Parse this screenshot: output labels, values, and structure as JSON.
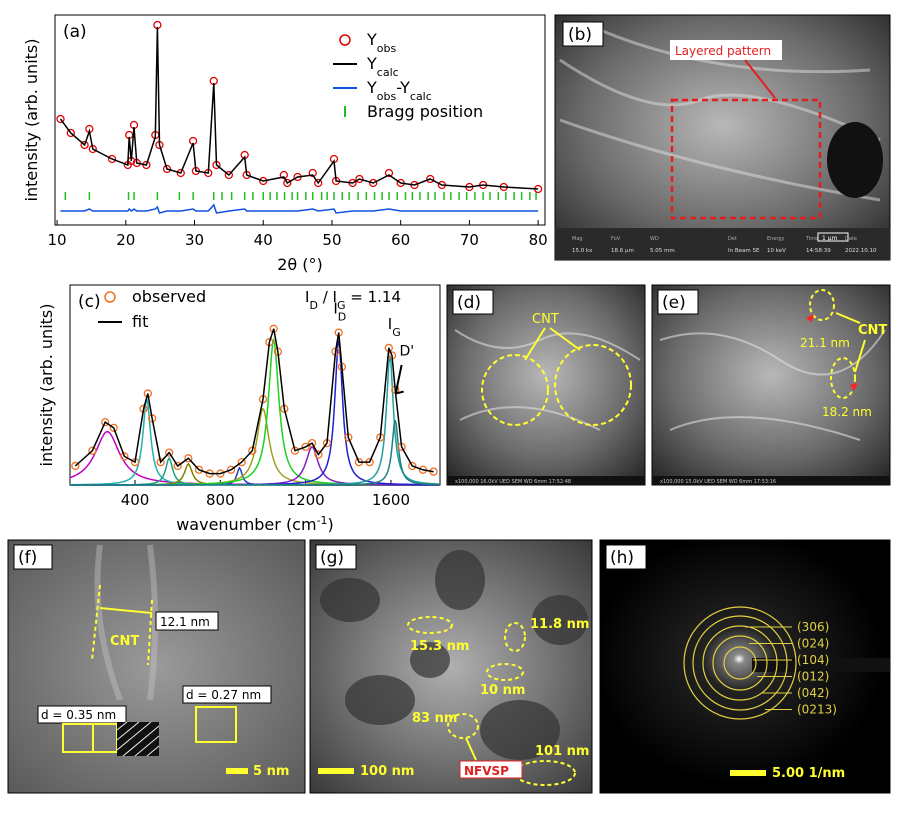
{
  "chart_data": [
    {
      "type": "line",
      "label": "(a)",
      "y_label": "intensity (arb. units)",
      "x_label": "2θ (°)",
      "xlim": [
        9.7,
        81
      ],
      "ylim": [
        0,
        105
      ],
      "xticks": [
        10,
        20,
        30,
        40,
        50,
        60,
        70,
        80
      ],
      "x": [
        10.5,
        12,
        14,
        14.7,
        15.2,
        18,
        20.3,
        20.5,
        20.8,
        21.2,
        21.6,
        23,
        24.3,
        24.6,
        24.9,
        26,
        28,
        29.8,
        30.2,
        32,
        32.8,
        33.2,
        35,
        37.3,
        37.6,
        40,
        43,
        43.5,
        45,
        47.2,
        48,
        50.3,
        50.6,
        53,
        54,
        56,
        58.3,
        60,
        62,
        64.3,
        66,
        70,
        72,
        75,
        80
      ],
      "series": [
        {
          "name": "Y",
          "name_sub": "obs",
          "color": "#e00000",
          "marker": "circle",
          "values": [
            53,
            46,
            40,
            48,
            38,
            33,
            30,
            45,
            32,
            50,
            31,
            30,
            45,
            100,
            40,
            28,
            26,
            42,
            27,
            26,
            72,
            30,
            25,
            35,
            25,
            22,
            25,
            21,
            24,
            26,
            21,
            33,
            22,
            21,
            23,
            21,
            26,
            21,
            20,
            23,
            20,
            19,
            20,
            19,
            18
          ]
        },
        {
          "name": "Y",
          "name_sub": "calc",
          "color": "#000000",
          "marker": "line",
          "values": [
            53,
            46,
            40,
            47,
            38,
            33,
            30,
            44,
            32,
            49,
            31,
            30,
            44,
            99,
            40,
            28,
            26,
            41,
            27,
            26,
            71,
            30,
            25,
            34,
            25,
            22,
            24,
            21,
            24,
            25,
            21,
            32,
            22,
            21,
            23,
            21,
            25,
            21,
            20,
            23,
            20,
            19,
            20,
            19,
            18
          ]
        },
        {
          "name": "Y",
          "name_sub": "obs",
          "name_mid": "-Y",
          "name_sub2": "calc",
          "color": "#1050e0",
          "marker": "line",
          "values": [
            7,
            7,
            7,
            8,
            7,
            7,
            7,
            8,
            7,
            8,
            7,
            7,
            8,
            9,
            6,
            7,
            7,
            8,
            7,
            7,
            10,
            6,
            7,
            8,
            7,
            7,
            7,
            7,
            7,
            8,
            7,
            8,
            6,
            7,
            7,
            7,
            8,
            7,
            7,
            7,
            7,
            7,
            7,
            7,
            7
          ]
        }
      ],
      "bragg": {
        "name": "Bragg position",
        "color": "#20c020",
        "x": [
          11.2,
          14.7,
          20.4,
          21.2,
          24.6,
          27.8,
          29.8,
          32.8,
          34,
          35.4,
          37.3,
          38.5,
          40,
          41,
          42,
          43.1,
          44.2,
          45,
          46.2,
          47.2,
          48.5,
          49.3,
          50.3,
          51.5,
          52.5,
          53.8,
          55,
          56.2,
          57.3,
          58.3,
          59.5,
          60.7,
          61.7,
          62.8,
          64,
          65,
          66.3,
          67.3,
          68.5,
          69.6,
          70.8,
          72,
          73,
          74.2,
          75.3,
          76.5,
          77.6,
          78.8,
          79.7
        ]
      }
    },
    {
      "type": "raman",
      "label": "(c)",
      "y_label": "intensity (arb. units)",
      "x_label": "wavenumber (cm",
      "x_label_sup": "-1",
      "x_label_end": ")",
      "xlim": [
        95,
        1830
      ],
      "ylim": [
        0,
        105
      ],
      "xticks": [
        400,
        800,
        1200,
        1600
      ],
      "x": [
        120,
        200,
        260,
        300,
        350,
        400,
        440,
        460,
        480,
        520,
        560,
        600,
        650,
        700,
        750,
        800,
        850,
        900,
        950,
        1000,
        1030,
        1050,
        1070,
        1100,
        1150,
        1200,
        1230,
        1260,
        1300,
        1340,
        1355,
        1370,
        1400,
        1450,
        1500,
        1550,
        1590,
        1605,
        1620,
        1650,
        1700,
        1750,
        1800
      ],
      "series": [
        {
          "name": "observed",
          "color": "#f07020",
          "marker": "circle",
          "values": [
            10,
            18,
            33,
            30,
            15,
            12,
            40,
            48,
            35,
            12,
            17,
            10,
            14,
            8,
            6,
            6,
            8,
            12,
            18,
            45,
            75,
            82,
            70,
            40,
            18,
            20,
            22,
            16,
            22,
            70,
            80,
            62,
            25,
            12,
            12,
            25,
            72,
            68,
            50,
            20,
            10,
            8,
            7
          ]
        },
        {
          "name": "fit",
          "color": "#000000",
          "marker": "line",
          "values": [
            10,
            18,
            33,
            30,
            15,
            12,
            40,
            48,
            35,
            12,
            17,
            10,
            14,
            8,
            6,
            6,
            8,
            12,
            18,
            45,
            75,
            82,
            70,
            40,
            18,
            20,
            22,
            16,
            22,
            70,
            80,
            62,
            25,
            12,
            12,
            25,
            72,
            68,
            50,
            20,
            10,
            8,
            7
          ]
        }
      ],
      "components": [
        {
          "color": "#c000c0",
          "center": 270,
          "height": 28,
          "width": 70
        },
        {
          "color": "#20b0b0",
          "center": 455,
          "height": 45,
          "width": 22
        },
        {
          "color": "#20a080",
          "center": 560,
          "height": 14,
          "width": 20
        },
        {
          "color": "#808000",
          "center": 650,
          "height": 11,
          "width": 22
        },
        {
          "color": "#2040c0",
          "center": 890,
          "height": 9,
          "width": 15
        },
        {
          "color": "#a0a020",
          "center": 1000,
          "height": 40,
          "width": 35
        },
        {
          "color": "#20d020",
          "center": 1050,
          "height": 76,
          "width": 30
        },
        {
          "color": "#8020c0",
          "center": 1230,
          "height": 20,
          "width": 35
        },
        {
          "color": "#2020d0",
          "center": 1355,
          "height": 76,
          "width": 22
        },
        {
          "color": "#20a0a0",
          "center": 1595,
          "height": 68,
          "width": 20
        },
        {
          "color": "#208080",
          "center": 1620,
          "height": 34,
          "width": 18
        }
      ],
      "ratio": {
        "a": "I",
        "a_sub": "D",
        "sep": " / ",
        "b": "I",
        "b_sub": "G",
        "eq": " = 1.14"
      },
      "peak_D": {
        "main": "I",
        "sub": "D"
      },
      "peak_G": {
        "main": "I",
        "sub": "G"
      },
      "peak_D2": "D'"
    }
  ],
  "panels": {
    "b": {
      "label": "(b)",
      "note": "Layered pattern",
      "info_keys": [
        "Mag",
        "FoV",
        "WD",
        "",
        "Det",
        "Energy",
        "Time",
        "Date"
      ],
      "info_values": [
        "15.0 kx",
        "18.6 µm",
        "5.05 mm",
        "",
        "In Beam SE",
        "10 keV",
        "14:58:39",
        "2022.10.10"
      ],
      "scale": "1 µm"
    },
    "d": {
      "label": "(d)",
      "note": "CNT",
      "footer": "x100,000   16.0kV UED   SEM   WD 6mm   17:52:48"
    },
    "e": {
      "label": "(e)",
      "note": "CNT",
      "w1": "21.1 nm",
      "w2": "18.2 nm",
      "footer": "x100,000   15.0kV UED   SEM   WD 6mm   17:53:16"
    },
    "f": {
      "label": "(f)",
      "w": "12.1 nm",
      "note": "CNT",
      "d1": "d = 0.27 nm",
      "d2": "d = 0.35 nm",
      "scale": "5 nm"
    },
    "g": {
      "label": "(g)",
      "w1": "15.3 nm",
      "w2": "11.8 nm",
      "w3": "10 nm",
      "w4": "83 nm",
      "w5": "101 nm",
      "note": "NFVSP",
      "scale": "100 nm"
    },
    "h": {
      "label": "(h)",
      "rings": [
        "(306)",
        "(024)",
        "(104)",
        "(012)",
        "(042)",
        "(0213)"
      ],
      "scale": "5.00 1/nm"
    }
  }
}
